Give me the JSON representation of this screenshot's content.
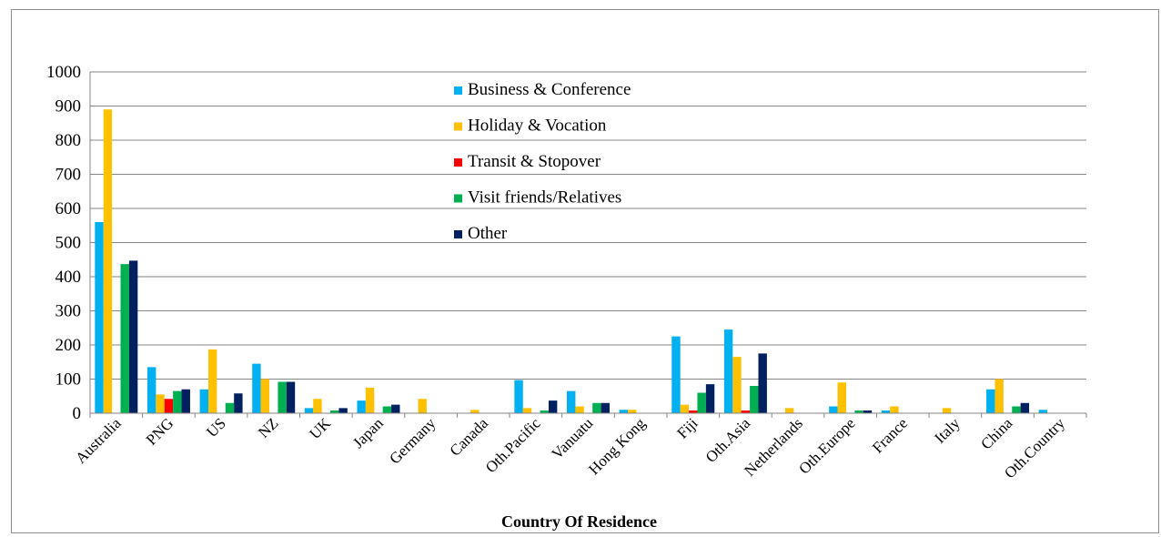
{
  "chart_data": {
    "type": "bar",
    "title": "",
    "xlabel": "Country Of Residence",
    "ylabel": "",
    "ylim": [
      0,
      1000
    ],
    "yticks": [
      0,
      100,
      200,
      300,
      400,
      500,
      600,
      700,
      800,
      900,
      1000
    ],
    "grid": "horizontal",
    "legend_position": "top-center",
    "categories": [
      "Australia",
      "PNG",
      "US",
      "NZ",
      "UK",
      "Japan",
      "Germany",
      "Canada",
      "Oth.Pacific",
      "Vanuatu",
      "Hong Kong",
      "Fiji",
      "Oth.Asia",
      "Netherlands",
      "Oth.Europe",
      "France",
      "Italy",
      "China",
      "Oth.Country"
    ],
    "series": [
      {
        "name": "Business & Conference",
        "color": "#00b0f0",
        "values": [
          560,
          135,
          70,
          145,
          15,
          37,
          0,
          0,
          97,
          65,
          10,
          225,
          245,
          0,
          20,
          8,
          0,
          70,
          10
        ]
      },
      {
        "name": "Holiday & Vocation",
        "color": "#ffc000",
        "values": [
          890,
          55,
          187,
          100,
          42,
          75,
          42,
          10,
          15,
          20,
          10,
          25,
          165,
          15,
          90,
          20,
          15,
          100,
          0
        ]
      },
      {
        "name": "Transit & Stopover",
        "color": "#ff0000",
        "values": [
          0,
          42,
          0,
          0,
          0,
          0,
          0,
          0,
          0,
          0,
          0,
          8,
          8,
          0,
          0,
          0,
          0,
          0,
          0
        ]
      },
      {
        "name": "Visit friends/Relatives",
        "color": "#00b050",
        "values": [
          437,
          65,
          30,
          92,
          8,
          20,
          0,
          0,
          8,
          30,
          0,
          60,
          80,
          0,
          8,
          0,
          0,
          20,
          0
        ]
      },
      {
        "name": "Other",
        "color": "#002060",
        "values": [
          447,
          70,
          58,
          92,
          15,
          25,
          0,
          0,
          37,
          30,
          0,
          85,
          175,
          0,
          8,
          0,
          0,
          30,
          0
        ]
      }
    ]
  }
}
